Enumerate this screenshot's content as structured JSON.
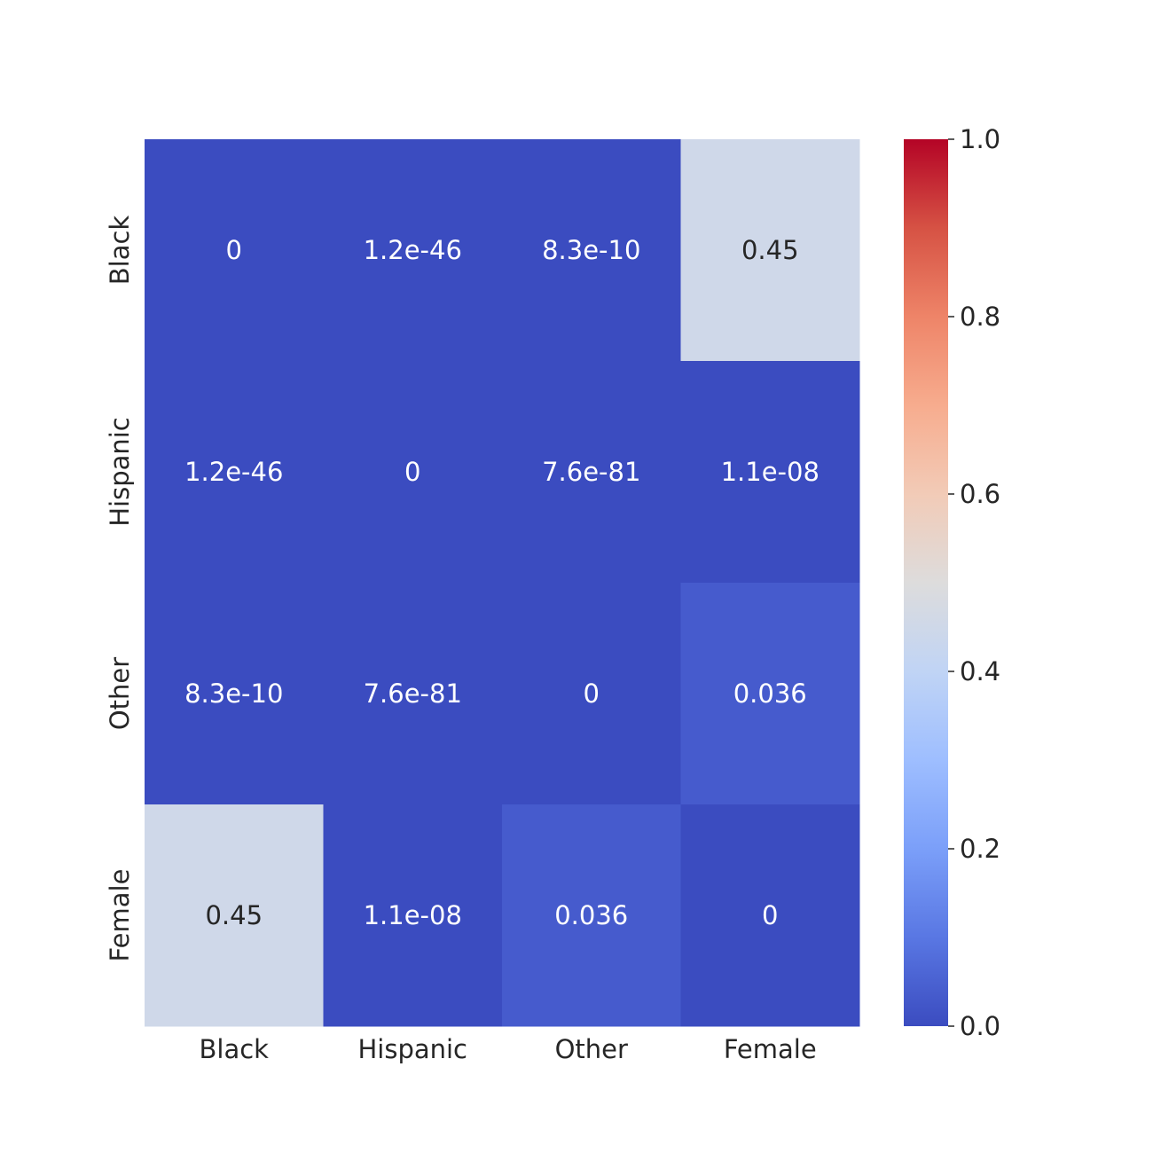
{
  "chart_data": {
    "type": "heatmap",
    "title": "",
    "xlabel": "",
    "ylabel": "",
    "x_categories": [
      "Black",
      "Hispanic",
      "Other",
      "Female"
    ],
    "y_categories": [
      "Black",
      "Hispanic",
      "Other",
      "Female"
    ],
    "values": [
      [
        0,
        1.2e-46,
        8.3e-10,
        0.45
      ],
      [
        1.2e-46,
        0,
        7.6e-81,
        1.1e-08
      ],
      [
        8.3e-10,
        7.6e-81,
        0,
        0.036
      ],
      [
        0.45,
        1.1e-08,
        0.036,
        0
      ]
    ],
    "annotations": [
      [
        "0",
        "1.2e-46",
        "8.3e-10",
        "0.45"
      ],
      [
        "1.2e-46",
        "0",
        "7.6e-81",
        "1.1e-08"
      ],
      [
        "8.3e-10",
        "7.6e-81",
        "0",
        "0.036"
      ],
      [
        "0.45",
        "1.1e-08",
        "0.036",
        "0"
      ]
    ],
    "colormap": "coolwarm",
    "vmin": 0,
    "vmax": 1,
    "colorbar": {
      "ticks": [
        0.0,
        0.2,
        0.4,
        0.6,
        0.8,
        1.0
      ],
      "tick_labels": [
        "0.0",
        "0.2",
        "0.4",
        "0.6",
        "0.8",
        "1.0"
      ]
    },
    "colors": {
      "low": "#3b4cc0",
      "mid": "#dddddd",
      "high": "#b40426",
      "text_light": "#ffffff",
      "text_dark": "#262626"
    }
  }
}
